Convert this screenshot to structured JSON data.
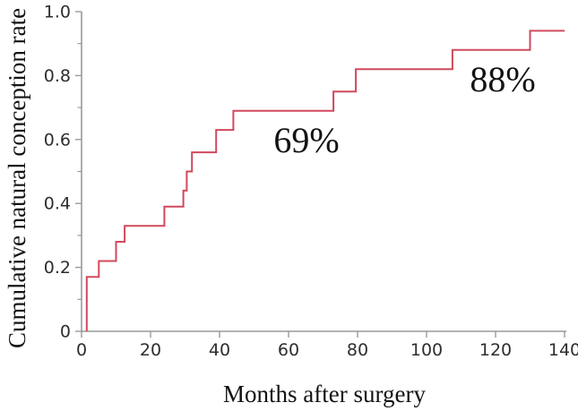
{
  "figure": {
    "background": "#ffffff"
  },
  "chart_data": {
    "type": "line",
    "subtype": "kaplan-meier-step-curve",
    "title": "",
    "xlabel": "Months after surgery",
    "ylabel": "Cumulative natural conception rate",
    "xlim": [
      0,
      140
    ],
    "ylim": [
      0,
      1.0
    ],
    "grid": false,
    "legend": null,
    "x_ticks": [
      0,
      20,
      40,
      60,
      80,
      100,
      120,
      140
    ],
    "x_tick_labels": [
      "0",
      "20",
      "40",
      "60",
      "80",
      "100",
      "120",
      "140"
    ],
    "y_ticks": [
      0,
      0.2,
      0.4,
      0.6,
      0.8,
      1.0
    ],
    "y_tick_labels": [
      "0",
      "0.2",
      "0.4",
      "0.6",
      "0.8",
      "1.0"
    ],
    "y_minor_ticks": [
      0.1,
      0.3,
      0.5,
      0.7,
      0.9
    ],
    "colors": {
      "line": "#d0495c",
      "axis": "#9a9a9a",
      "tick_label": "#2e2e2e",
      "text": "#131313"
    },
    "series": [
      {
        "name": "Cumulative natural conception rate",
        "type": "step",
        "start": {
          "x": 1.5,
          "y": 0
        },
        "points": [
          {
            "x": 1.5,
            "y": 0.17
          },
          {
            "x": 5,
            "y": 0.22
          },
          {
            "x": 10,
            "y": 0.28
          },
          {
            "x": 12.5,
            "y": 0.33
          },
          {
            "x": 24,
            "y": 0.39
          },
          {
            "x": 29.5,
            "y": 0.44
          },
          {
            "x": 30.5,
            "y": 0.5
          },
          {
            "x": 32,
            "y": 0.56
          },
          {
            "x": 39,
            "y": 0.63
          },
          {
            "x": 44,
            "y": 0.69
          },
          {
            "x": 73,
            "y": 0.75
          },
          {
            "x": 79.5,
            "y": 0.82
          },
          {
            "x": 107.5,
            "y": 0.88
          },
          {
            "x": 130,
            "y": 0.94
          }
        ],
        "end_x": 140
      }
    ],
    "annotations": [
      {
        "text": "69%",
        "x": 65.2,
        "y": 0.6
      },
      {
        "text": "88%",
        "x": 122.1,
        "y": 0.79
      }
    ]
  }
}
